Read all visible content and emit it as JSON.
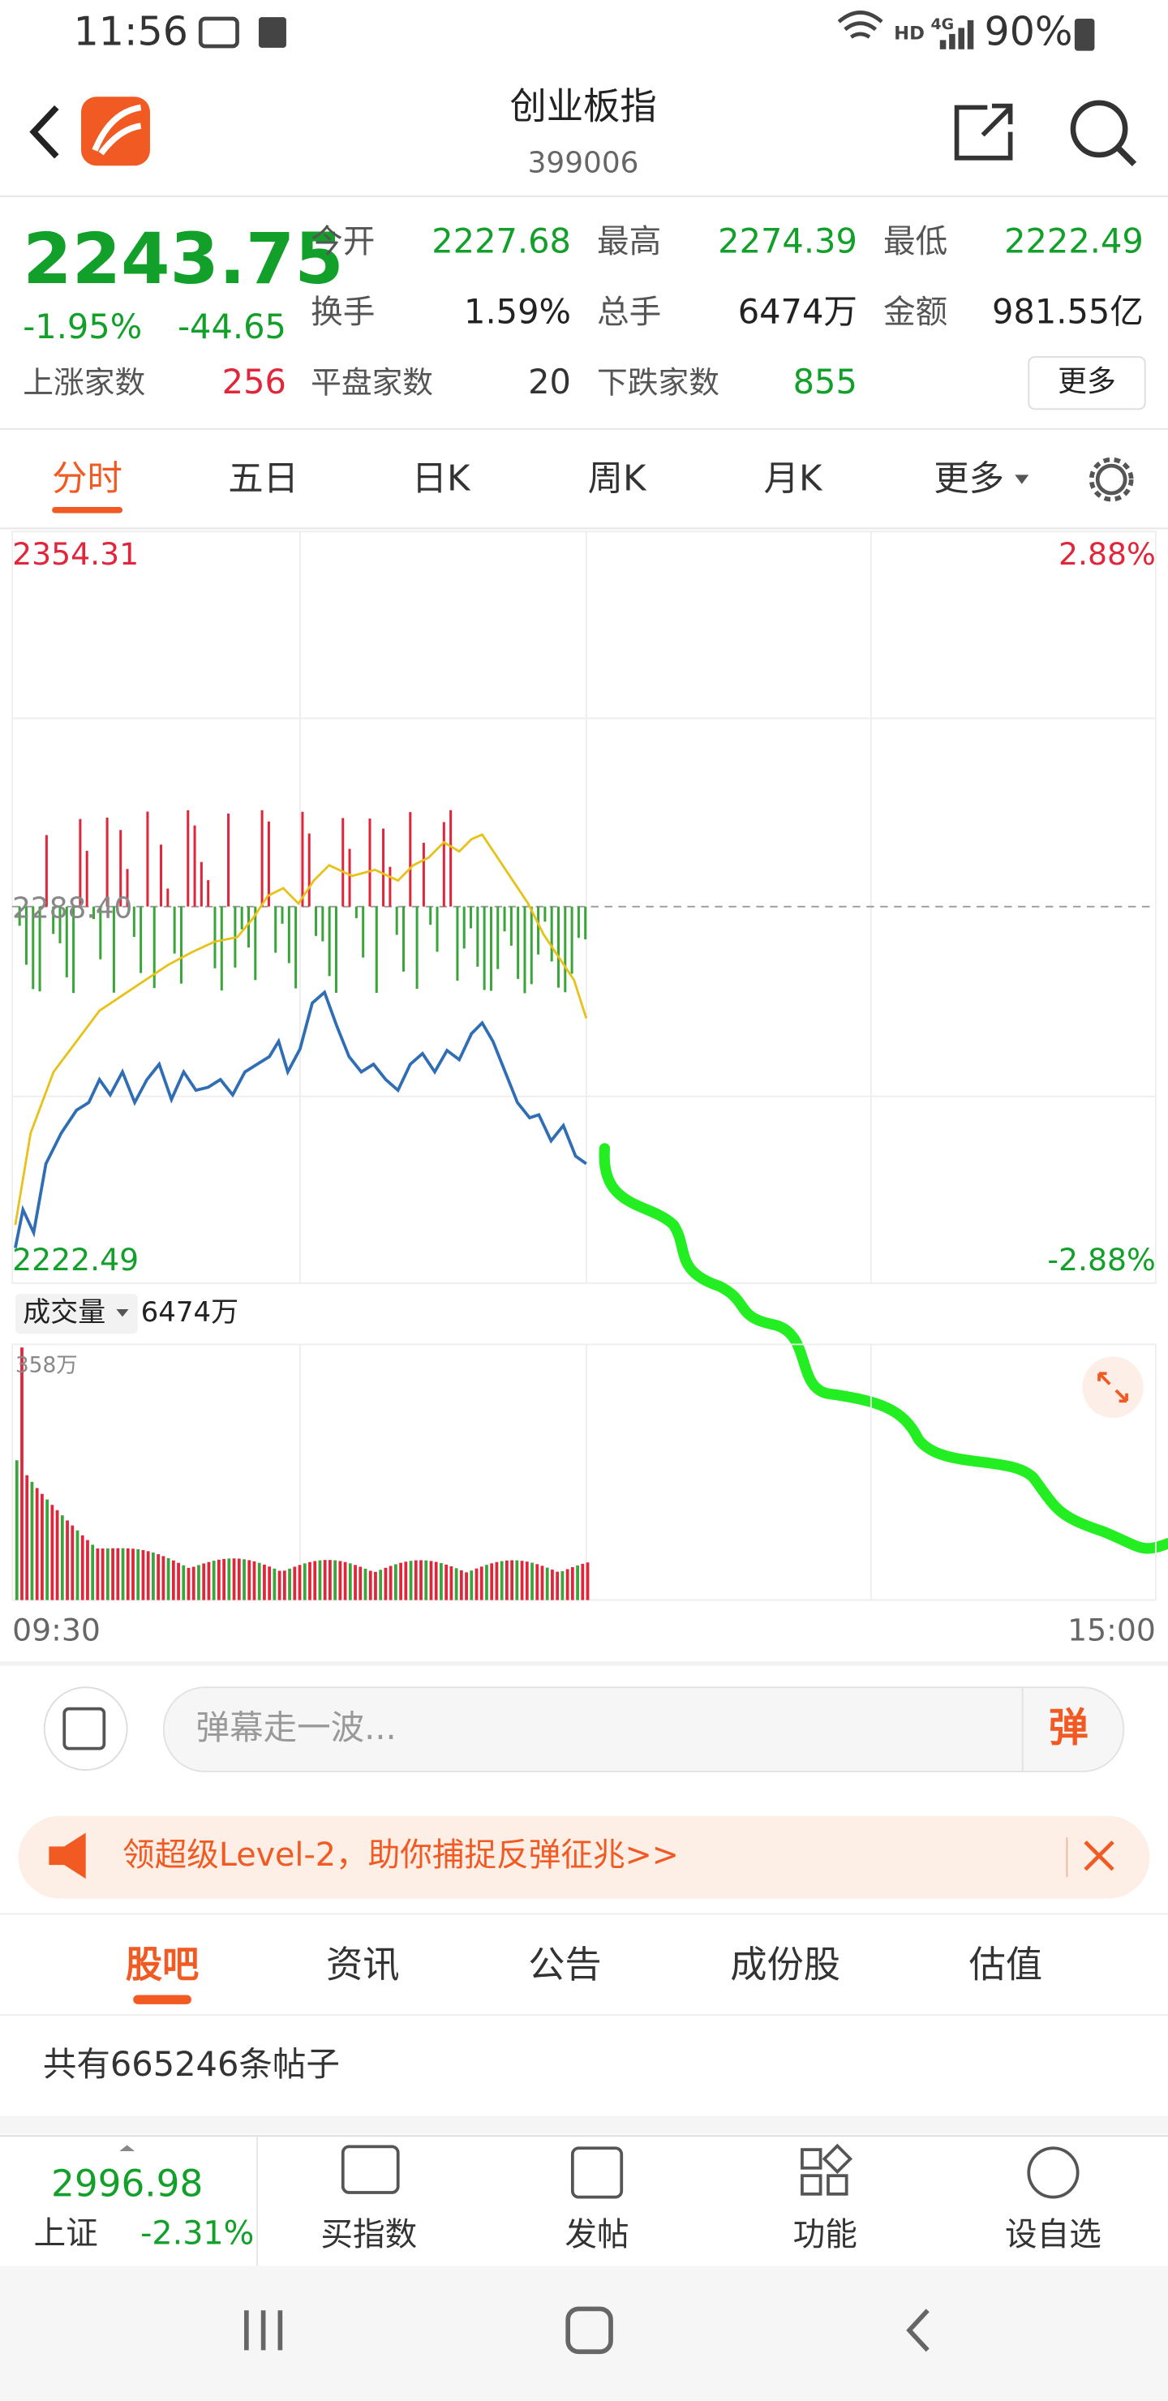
{
  "status_bar": {
    "time": "11:56",
    "network": "HD",
    "signal": "4G",
    "battery": "90%"
  },
  "header": {
    "title": "创业板指",
    "code": "399006"
  },
  "quote": {
    "price": "2243.75",
    "change_pct": "-1.95%",
    "change": "-44.65",
    "fields": [
      {
        "label": "今开",
        "value": "2227.68"
      },
      {
        "label": "最高",
        "value": "2274.39"
      },
      {
        "label": "最低",
        "value": "2222.49"
      },
      {
        "label": "换手",
        "value": "1.59%"
      },
      {
        "label": "总手",
        "value": "6474万"
      },
      {
        "label": "金额",
        "value": "981.55亿"
      }
    ],
    "up_label": "上涨家数",
    "up": "256",
    "flat_label": "平盘家数",
    "flat": "20",
    "down_label": "下跌家数",
    "down": "855",
    "more": "更多"
  },
  "period_tabs": [
    "分时",
    "五日",
    "日K",
    "周K",
    "月K",
    "更多"
  ],
  "chart": {
    "price_high": "2354.31",
    "price_low": "2222.49",
    "pct_high": "2.88%",
    "pct_low": "-2.88%",
    "prev_close": "2288.40",
    "volume_label": "成交量",
    "volume": "6474万",
    "volume_max": "358万",
    "time_start": "09:30",
    "time_end": "15:00"
  },
  "danmaku": {
    "placeholder": "弹幕走一波...",
    "button": "弹"
  },
  "banner": {
    "text": "领超级Level-2，助你捕捉反弹征兆>>"
  },
  "content_tabs": [
    "股吧",
    "资讯",
    "公告",
    "成份股",
    "估值"
  ],
  "post_count": "共有665246条帖子",
  "bottom_bar": {
    "index_value": "2996.98",
    "index_name": "上证",
    "index_change": "-2.31%",
    "actions": [
      "买指数",
      "发帖",
      "功能",
      "设自选"
    ]
  }
}
